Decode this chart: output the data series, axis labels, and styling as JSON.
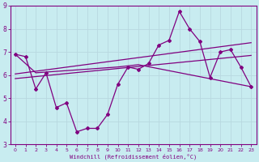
{
  "background_color": "#c8ecf0",
  "grid_color": "#b8d8e0",
  "line_color": "#800080",
  "xlabel": "Windchill (Refroidissement éolien,°C)",
  "xlim": [
    -0.5,
    23.5
  ],
  "ylim": [
    3,
    9
  ],
  "yticks": [
    3,
    4,
    5,
    6,
    7,
    8,
    9
  ],
  "xticks": [
    0,
    1,
    2,
    3,
    4,
    5,
    6,
    7,
    8,
    9,
    10,
    11,
    12,
    13,
    14,
    15,
    16,
    17,
    18,
    19,
    20,
    21,
    22,
    23
  ],
  "line1_x": [
    0,
    1,
    2,
    3,
    4,
    5,
    6,
    7,
    8,
    9,
    10,
    11,
    12,
    13,
    14,
    15,
    16,
    17,
    18,
    19,
    20,
    21,
    22,
    23
  ],
  "line1_y": [
    6.9,
    6.8,
    5.4,
    6.1,
    4.6,
    4.8,
    3.55,
    3.7,
    3.7,
    4.3,
    5.6,
    6.35,
    6.25,
    6.5,
    7.3,
    7.5,
    8.75,
    8.0,
    7.45,
    5.9,
    7.0,
    7.1,
    6.35,
    5.5
  ],
  "line2_x": [
    0,
    2,
    10,
    12,
    23
  ],
  "line2_y": [
    6.9,
    6.1,
    6.35,
    6.45,
    5.5
  ],
  "line3_x": [
    0,
    23
  ],
  "line3_y": [
    6.05,
    7.4
  ],
  "line4_x": [
    0,
    23
  ],
  "line4_y": [
    5.85,
    6.85
  ]
}
